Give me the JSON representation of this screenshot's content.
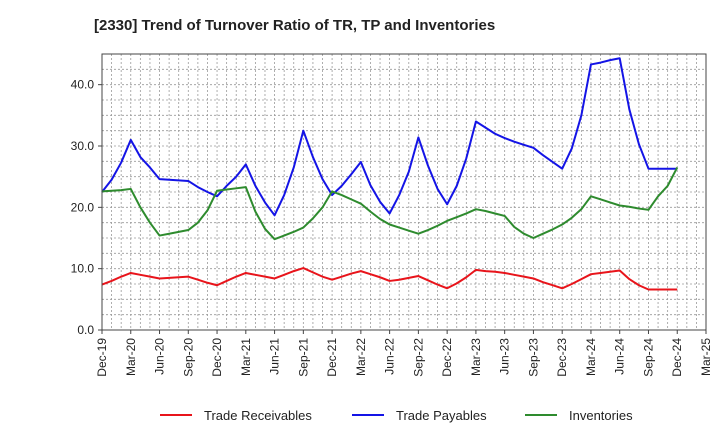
{
  "chart_data": {
    "type": "line",
    "title": "[2330]  Trend of Turnover Ratio of TR, TP and Inventories",
    "xlabel": "",
    "ylabel": "",
    "ylim": [
      0,
      45
    ],
    "yticks": [
      "0.0",
      "10.0",
      "20.0",
      "30.0",
      "40.0"
    ],
    "ytick_values": [
      0,
      10,
      20,
      30,
      40
    ],
    "xtick_labels": [
      "Dec-19",
      "Mar-20",
      "Jun-20",
      "Sep-20",
      "Dec-20",
      "Mar-21",
      "Jun-21",
      "Sep-21",
      "Dec-21",
      "Mar-22",
      "Jun-22",
      "Sep-22",
      "Dec-22",
      "Mar-23",
      "Jun-23",
      "Sep-23",
      "Dec-23",
      "Mar-24",
      "Jun-24",
      "Sep-24",
      "Dec-24",
      "Mar-25"
    ],
    "grid": true,
    "legend_position": "bottom",
    "x": [
      "Dec-19",
      "Jan-20",
      "Feb-20",
      "Mar-20",
      "Apr-20",
      "May-20",
      "Jun-20",
      "Jul-20",
      "Aug-20",
      "Sep-20",
      "Oct-20",
      "Nov-20",
      "Dec-20",
      "Jan-21",
      "Feb-21",
      "Mar-21",
      "Apr-21",
      "May-21",
      "Jun-21",
      "Jul-21",
      "Aug-21",
      "Sep-21",
      "Oct-21",
      "Nov-21",
      "Dec-21",
      "Jan-22",
      "Feb-22",
      "Mar-22",
      "Apr-22",
      "May-22",
      "Jun-22",
      "Jul-22",
      "Aug-22",
      "Sep-22",
      "Oct-22",
      "Nov-22",
      "Dec-22",
      "Jan-23",
      "Feb-23",
      "Mar-23",
      "Apr-23",
      "May-23",
      "Jun-23",
      "Jul-23",
      "Aug-23",
      "Sep-23",
      "Oct-23",
      "Nov-23",
      "Dec-23",
      "Jan-24",
      "Feb-24",
      "Mar-24",
      "Apr-24",
      "May-24",
      "Jun-24",
      "Jul-24",
      "Aug-24",
      "Sep-24",
      "Oct-24",
      "Nov-24",
      "Dec-24"
    ],
    "series": [
      {
        "name": "Trade Receivables",
        "color": "#e8141b",
        "values": [
          7.4,
          8.0,
          8.7,
          9.3,
          9.0,
          8.7,
          8.4,
          8.5,
          8.6,
          8.7,
          8.2,
          7.7,
          7.3,
          8.0,
          8.7,
          9.3,
          9.0,
          8.7,
          8.4,
          9.0,
          9.6,
          10.1,
          9.4,
          8.7,
          8.2,
          8.7,
          9.2,
          9.6,
          9.1,
          8.6,
          8.0,
          8.2,
          8.5,
          8.8,
          8.1,
          7.4,
          6.8,
          7.6,
          8.6,
          9.8,
          9.6,
          9.5,
          9.3,
          9.0,
          8.7,
          8.4,
          7.8,
          7.3,
          6.8,
          7.5,
          8.3,
          9.1,
          9.3,
          9.5,
          9.7,
          8.3,
          7.3,
          6.6,
          6.6,
          6.6,
          6.6
        ]
      },
      {
        "name": "Trade Payables",
        "color": "#1414e6",
        "values": [
          22.5,
          24.5,
          27.3,
          31.0,
          28.2,
          26.5,
          24.6,
          24.5,
          24.4,
          24.3,
          23.3,
          22.5,
          21.8,
          23.5,
          25.0,
          27.0,
          23.5,
          20.8,
          18.7,
          22.0,
          26.5,
          32.5,
          28.2,
          24.6,
          22.0,
          23.5,
          25.4,
          27.4,
          23.6,
          20.9,
          19.0,
          22.0,
          25.8,
          31.4,
          26.8,
          23.0,
          20.5,
          23.5,
          28.0,
          34.0,
          33.0,
          32.0,
          31.3,
          30.7,
          30.2,
          29.7,
          28.5,
          27.4,
          26.3,
          29.6,
          35.0,
          43.3,
          43.6,
          44.0,
          44.3,
          36.0,
          30.3,
          26.3,
          26.3,
          26.3,
          26.3
        ]
      },
      {
        "name": "Inventories",
        "color": "#2e8b2e",
        "values": [
          22.6,
          22.7,
          22.8,
          23.0,
          20.0,
          17.5,
          15.4,
          15.7,
          16.0,
          16.3,
          17.5,
          19.5,
          22.7,
          22.9,
          23.1,
          23.3,
          19.3,
          16.5,
          14.8,
          15.4,
          16.0,
          16.7,
          18.2,
          20.0,
          22.6,
          22.0,
          21.3,
          20.6,
          19.3,
          18.1,
          17.2,
          16.7,
          16.2,
          15.7,
          16.3,
          17.0,
          17.8,
          18.4,
          19.0,
          19.7,
          19.4,
          19.0,
          18.6,
          16.8,
          15.7,
          15.0,
          15.7,
          16.4,
          17.2,
          18.3,
          19.7,
          21.8,
          21.3,
          20.8,
          20.3,
          20.1,
          19.8,
          19.6,
          21.8,
          23.5,
          26.5
        ]
      }
    ]
  }
}
